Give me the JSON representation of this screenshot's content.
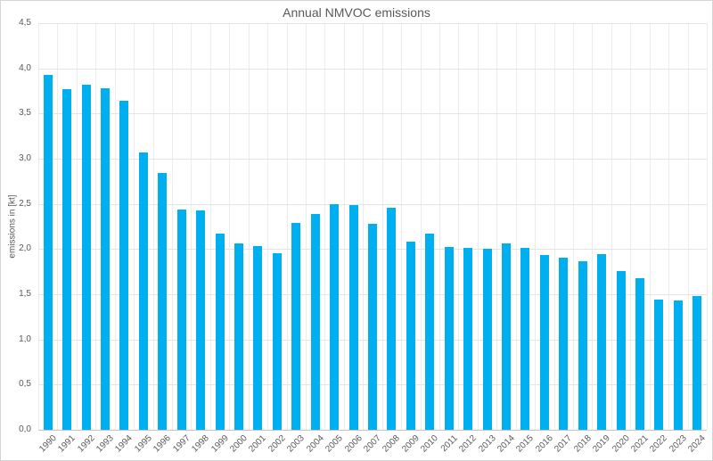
{
  "chart_data": {
    "type": "bar",
    "title": "Annual NMVOC emissions",
    "ylabel": "emissions in [kt]",
    "xlabel": "",
    "categories": [
      "1990",
      "1991",
      "1992",
      "1993",
      "1994",
      "1995",
      "1996",
      "1997",
      "1998",
      "1999",
      "2000",
      "2001",
      "2002",
      "2003",
      "2004",
      "2005",
      "2006",
      "2007",
      "2008",
      "2009",
      "2010",
      "2011",
      "2012",
      "2013",
      "2014",
      "2015",
      "2016",
      "2017",
      "2018",
      "2019",
      "2020",
      "2021",
      "2022",
      "2023",
      "2024"
    ],
    "values": [
      3.93,
      3.77,
      3.82,
      3.78,
      3.64,
      3.07,
      2.84,
      2.44,
      2.43,
      2.17,
      2.06,
      2.03,
      1.95,
      2.29,
      2.39,
      2.5,
      2.49,
      2.28,
      2.46,
      2.08,
      2.17,
      2.02,
      2.01,
      2.0,
      2.06,
      2.01,
      1.93,
      1.9,
      1.87,
      1.94,
      1.76,
      1.68,
      1.44,
      1.43,
      1.48
    ],
    "ylim": [
      0,
      4.5
    ],
    "ytick_step": 0.5,
    "yticklabels": [
      "0,0",
      "0,5",
      "1,0",
      "1,5",
      "2,0",
      "2,5",
      "3,0",
      "3,5",
      "4,0",
      "4,5"
    ],
    "decimal_separator": ",",
    "grid": "horizontal and vertical gridlines, light gray",
    "legend": "none",
    "colors": {
      "bar": "#00aff0",
      "gridline_h": "#e4e4e4",
      "gridline_v": "#ececec",
      "axis_line": "#c3c3c3",
      "text": "#595959",
      "border": "#d4d4d4",
      "background": "#ffffff"
    }
  }
}
